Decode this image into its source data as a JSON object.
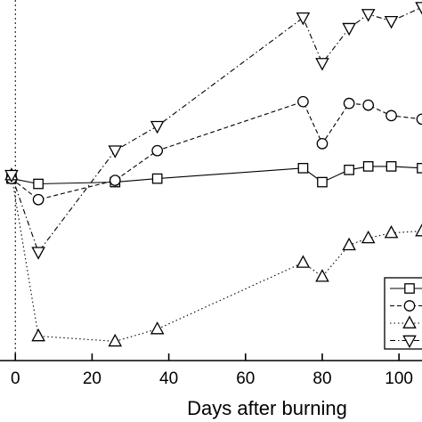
{
  "chart_data": {
    "type": "line",
    "title": "",
    "xlabel": "Days after burning",
    "ylabel": "",
    "xlim": [
      -4,
      106
    ],
    "ylim": [
      0,
      100
    ],
    "xticks": [
      0,
      20,
      40,
      60,
      80,
      100
    ],
    "xtick_labels": [
      "0",
      "20",
      "40",
      "60",
      "80",
      "100"
    ],
    "grid": false,
    "reference_line": {
      "x": 0,
      "style": "dotted"
    },
    "legend": {
      "placement": "bottom-right",
      "entries": [
        "",
        "",
        "",
        ""
      ]
    },
    "series": [
      {
        "marker": "square",
        "line_style": "solid",
        "points": [
          [
            -1,
            52
          ],
          [
            6,
            50.5
          ],
          [
            26,
            51
          ],
          [
            37,
            52
          ],
          [
            75,
            55
          ],
          [
            80,
            51
          ],
          [
            87,
            54.5
          ],
          [
            92,
            55.5
          ],
          [
            98,
            55.5
          ],
          [
            106,
            55
          ]
        ]
      },
      {
        "marker": "circle",
        "line_style": "dashed",
        "points": [
          [
            -1,
            52
          ],
          [
            6,
            46
          ],
          [
            26,
            51.5
          ],
          [
            37,
            60
          ],
          [
            75,
            74
          ],
          [
            80,
            62
          ],
          [
            87,
            73.5
          ],
          [
            92,
            73
          ],
          [
            98,
            70
          ],
          [
            106,
            69
          ]
        ]
      },
      {
        "marker": "triangle-up",
        "line_style": "dotted",
        "points": [
          [
            -1,
            53
          ],
          [
            6,
            7
          ],
          [
            26,
            5.5
          ],
          [
            37,
            9
          ],
          [
            75,
            28
          ],
          [
            80,
            24
          ],
          [
            87,
            33
          ],
          [
            92,
            35
          ],
          [
            98,
            36.5
          ],
          [
            106,
            37
          ]
        ]
      },
      {
        "marker": "triangle-down",
        "line_style": "dash-dot",
        "points": [
          [
            -1,
            53
          ],
          [
            6,
            31
          ],
          [
            26,
            60
          ],
          [
            37,
            67
          ],
          [
            75,
            98
          ],
          [
            80,
            85
          ],
          [
            87,
            95
          ],
          [
            92,
            99
          ],
          [
            98,
            97
          ],
          [
            106,
            101
          ]
        ]
      }
    ]
  }
}
